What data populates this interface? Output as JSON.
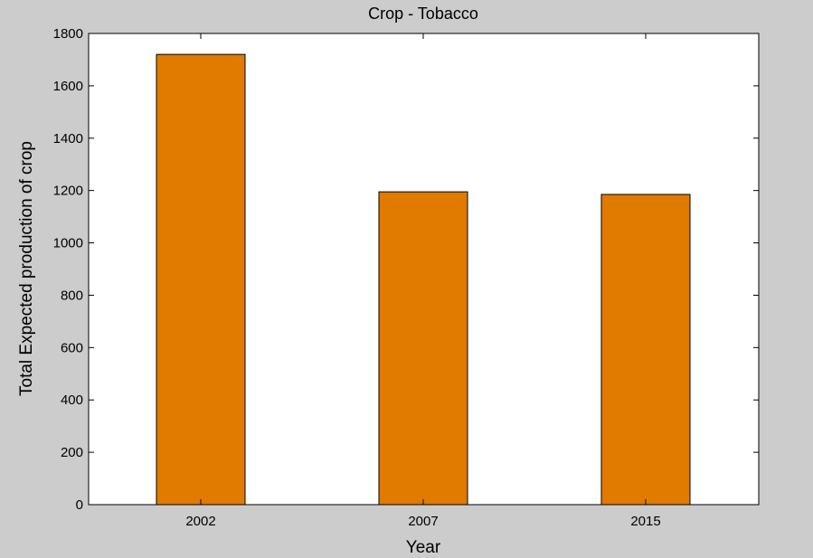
{
  "chart_data": {
    "type": "bar",
    "title": "Crop - Tobacco",
    "xlabel": "Year",
    "ylabel": "Total Expected production of crop",
    "categories": [
      "2002",
      "2007",
      "2015"
    ],
    "values": [
      1720,
      1195,
      1185
    ],
    "ylim": [
      0,
      1800
    ],
    "yticks": [
      0,
      200,
      400,
      600,
      800,
      1000,
      1200,
      1400,
      1600,
      1800
    ],
    "grid": false,
    "legend": "none",
    "colors": {
      "bar": "#e07b00",
      "bar_edge": "#000000",
      "plot_background": "#ffffff",
      "figure_background": "#cccccc"
    }
  }
}
